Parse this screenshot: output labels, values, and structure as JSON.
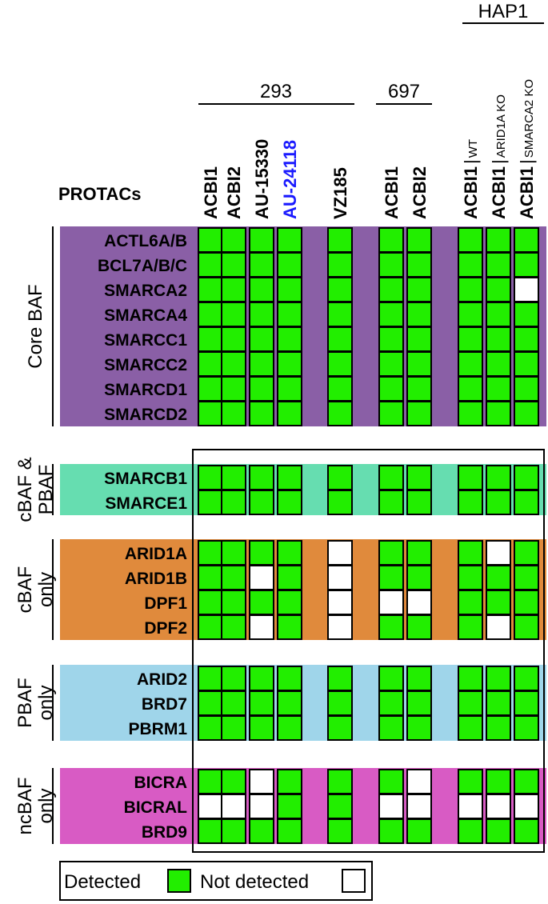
{
  "header": {
    "protacs_label": "PROTACs",
    "groups": [
      {
        "label": "293"
      },
      {
        "label": "697"
      },
      {
        "label": "HAP1"
      }
    ],
    "columns": [
      {
        "drug": "ACBI1",
        "sub": "",
        "color": "#000000"
      },
      {
        "drug": "ACBI2",
        "sub": "",
        "color": "#000000"
      },
      {
        "drug": "AU-15330",
        "sub": "",
        "color": "#000000"
      },
      {
        "drug": "AU-24118",
        "sub": "",
        "color": "#1a1aff"
      },
      {
        "drug": "VZ185",
        "sub": "",
        "color": "#000000"
      },
      {
        "drug": "ACBI1",
        "sub": "",
        "color": "#000000"
      },
      {
        "drug": "ACBI2",
        "sub": "",
        "color": "#000000"
      },
      {
        "drug": "ACBI1",
        "sub": "WT",
        "color": "#000000"
      },
      {
        "drug": "ACBI1",
        "sub": "ARID1A KO",
        "color": "#000000"
      },
      {
        "drug": "ACBI1",
        "sub": "SMARCA2 KO",
        "color": "#000000"
      }
    ]
  },
  "sections": [
    {
      "label_lines": [
        "Core BAF"
      ],
      "color": "#8a5fa6",
      "rows": [
        {
          "protein": "ACTL6A/B",
          "values": [
            1,
            1,
            1,
            1,
            1,
            1,
            1,
            1,
            1,
            1
          ]
        },
        {
          "protein": "BCL7A/B/C",
          "values": [
            1,
            1,
            1,
            1,
            1,
            1,
            1,
            1,
            1,
            1
          ]
        },
        {
          "protein": "SMARCA2",
          "values": [
            1,
            1,
            1,
            1,
            1,
            1,
            1,
            1,
            1,
            0
          ]
        },
        {
          "protein": "SMARCA4",
          "values": [
            1,
            1,
            1,
            1,
            1,
            1,
            1,
            1,
            1,
            1
          ]
        },
        {
          "protein": "SMARCC1",
          "values": [
            1,
            1,
            1,
            1,
            1,
            1,
            1,
            1,
            1,
            1
          ]
        },
        {
          "protein": "SMARCC2",
          "values": [
            1,
            1,
            1,
            1,
            1,
            1,
            1,
            1,
            1,
            1
          ]
        },
        {
          "protein": "SMARCD1",
          "values": [
            1,
            1,
            1,
            1,
            1,
            1,
            1,
            1,
            1,
            1
          ]
        },
        {
          "protein": "SMARCD2",
          "values": [
            1,
            1,
            1,
            1,
            1,
            1,
            1,
            1,
            1,
            1
          ]
        }
      ]
    },
    {
      "label_lines": [
        "cBAF &",
        "PBAF"
      ],
      "color": "#66ddb0",
      "rows": [
        {
          "protein": "SMARCB1",
          "values": [
            1,
            1,
            1,
            1,
            1,
            1,
            1,
            1,
            1,
            1
          ]
        },
        {
          "protein": "SMARCE1",
          "values": [
            1,
            1,
            1,
            1,
            1,
            1,
            1,
            1,
            1,
            1
          ]
        }
      ]
    },
    {
      "label_lines": [
        "cBAF",
        "only"
      ],
      "color": "#e08a3c",
      "rows": [
        {
          "protein": "ARID1A",
          "values": [
            1,
            1,
            1,
            1,
            0,
            1,
            1,
            1,
            0,
            1
          ]
        },
        {
          "protein": "ARID1B",
          "values": [
            1,
            1,
            0,
            1,
            0,
            1,
            1,
            1,
            1,
            1
          ]
        },
        {
          "protein": "DPF1",
          "values": [
            1,
            1,
            1,
            1,
            0,
            0,
            0,
            1,
            1,
            1
          ]
        },
        {
          "protein": "DPF2",
          "values": [
            1,
            1,
            0,
            1,
            0,
            1,
            1,
            1,
            0,
            1
          ]
        }
      ]
    },
    {
      "label_lines": [
        "PBAF",
        "only"
      ],
      "color": "#9fd5ea",
      "rows": [
        {
          "protein": "ARID2",
          "values": [
            1,
            1,
            1,
            1,
            1,
            1,
            1,
            1,
            1,
            1
          ]
        },
        {
          "protein": "BRD7",
          "values": [
            1,
            1,
            1,
            1,
            1,
            1,
            1,
            1,
            1,
            1
          ]
        },
        {
          "protein": "PBRM1",
          "values": [
            1,
            1,
            1,
            1,
            1,
            1,
            1,
            1,
            1,
            1
          ]
        }
      ]
    },
    {
      "label_lines": [
        "ncBAF",
        "only"
      ],
      "color": "#d85bc4",
      "rows": [
        {
          "protein": "BICRA",
          "values": [
            1,
            1,
            0,
            1,
            1,
            1,
            0,
            1,
            1,
            1
          ]
        },
        {
          "protein": "BICRAL",
          "values": [
            0,
            0,
            0,
            1,
            1,
            0,
            0,
            0,
            0,
            0
          ]
        },
        {
          "protein": "BRD9",
          "values": [
            1,
            1,
            1,
            1,
            1,
            1,
            1,
            1,
            1,
            1
          ]
        }
      ]
    }
  ],
  "legend": {
    "detected": "Detected",
    "not_detected": "Not detected",
    "detected_color": "#22ee00",
    "not_detected_color": "#ffffff"
  }
}
